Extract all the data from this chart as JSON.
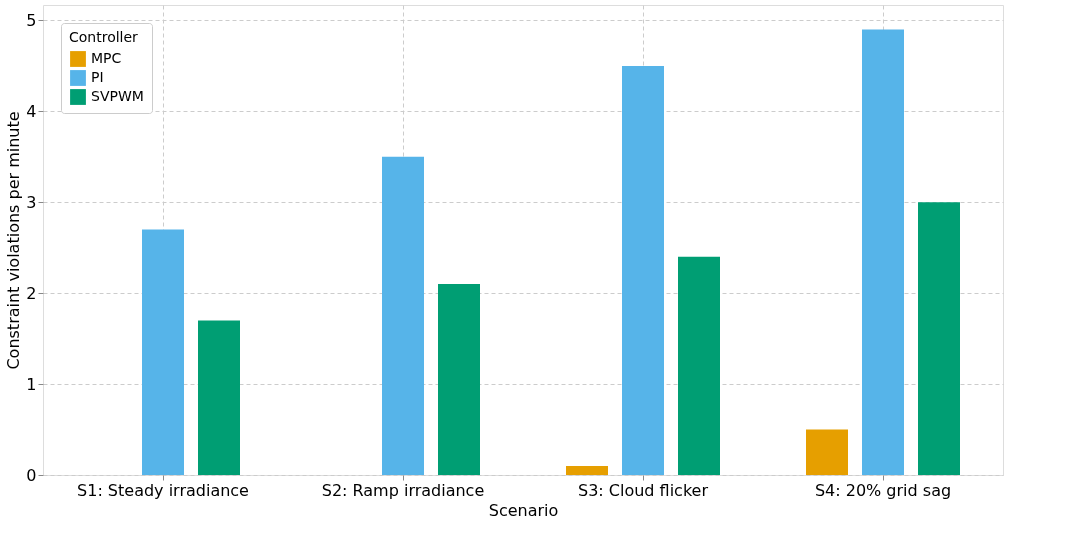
{
  "chart_data": {
    "type": "bar",
    "xlabel": "Scenario",
    "ylabel": "Constraint violations per minute",
    "legend_title": "Controller",
    "categories": [
      "S1: Steady irradiance",
      "S2: Ramp irradiance",
      "S3: Cloud flicker",
      "S4: 20% grid sag"
    ],
    "series": [
      {
        "name": "MPC",
        "color": "#e69f00",
        "values": [
          0,
          0,
          0.1,
          0.5
        ]
      },
      {
        "name": "PI",
        "color": "#56b4e9",
        "values": [
          2.7,
          3.5,
          4.5,
          4.9
        ]
      },
      {
        "name": "SVPWM",
        "color": "#009e73",
        "values": [
          1.7,
          2.1,
          2.4,
          3.0
        ]
      }
    ],
    "ylim": [
      0,
      5.17
    ],
    "yticks": [
      0,
      1,
      2,
      3,
      4,
      5
    ],
    "grid": true,
    "legend": "top left"
  }
}
